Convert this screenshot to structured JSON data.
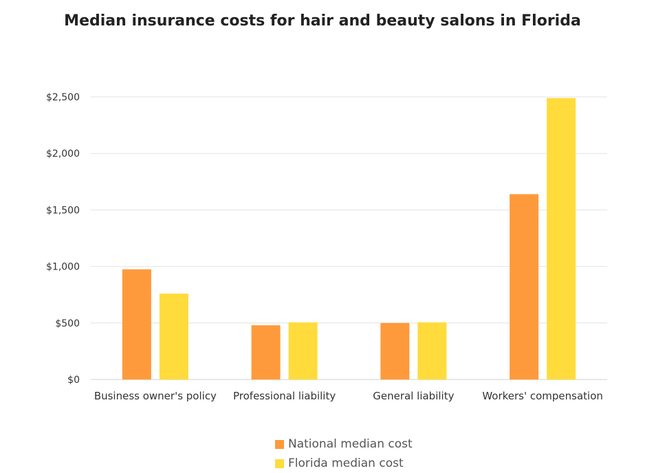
{
  "chart_data": {
    "type": "bar",
    "title": "Median insurance costs for hair and beauty salons in Florida",
    "categories": [
      "Business owner's policy",
      "Professional liability",
      "General liability",
      "Workers' compensation"
    ],
    "series": [
      {
        "name": "National median cost",
        "color": "#FF9A3C",
        "values": [
          975,
          480,
          500,
          1640
        ]
      },
      {
        "name": "Florida median cost",
        "color": "#FFDC3C",
        "values": [
          760,
          505,
          505,
          2490
        ]
      }
    ],
    "yticks": [
      "$0",
      "$500",
      "$1,000",
      "$1,500",
      "$2,000",
      "$2,500"
    ],
    "ylim": [
      0,
      2500
    ],
    "xlabel": "",
    "ylabel": "",
    "grid": true,
    "legend_position": "bottom"
  }
}
